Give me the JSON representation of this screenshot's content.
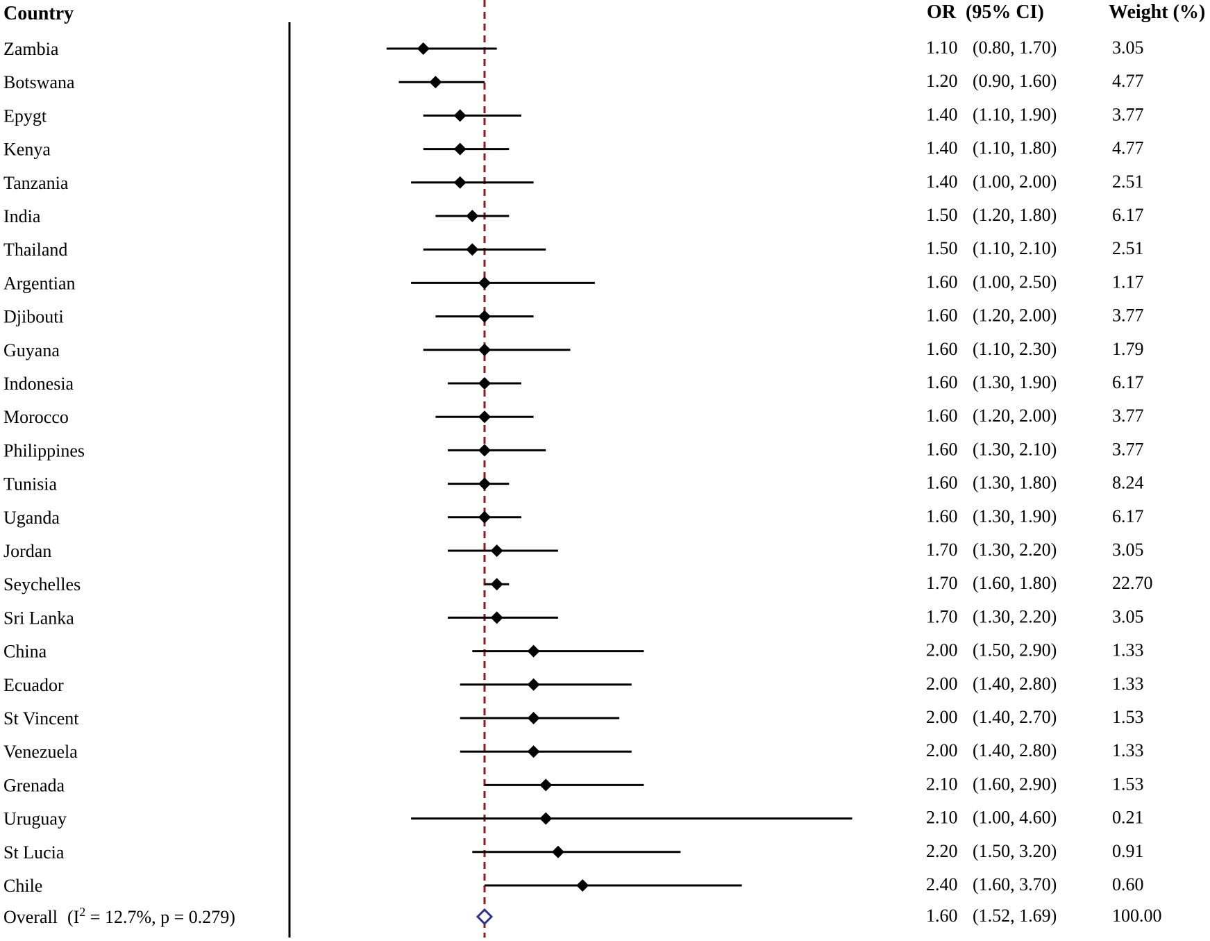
{
  "chart_data": {
    "type": "forest",
    "headers": {
      "country": "Country",
      "or_ci": "OR  (95% CI)",
      "weight": "Weight (%)"
    },
    "reference_value": 1.6,
    "rows": [
      {
        "country": "Zambia",
        "or": 1.1,
        "lo": 0.8,
        "hi": 1.7,
        "or_text": "1.10",
        "ci_text": "(0.80, 1.70)",
        "weight": "3.05"
      },
      {
        "country": "Botswana",
        "or": 1.2,
        "lo": 0.9,
        "hi": 1.6,
        "or_text": "1.20",
        "ci_text": "(0.90, 1.60)",
        "weight": "4.77"
      },
      {
        "country": "Epygt",
        "or": 1.4,
        "lo": 1.1,
        "hi": 1.9,
        "or_text": "1.40",
        "ci_text": "(1.10, 1.90)",
        "weight": "3.77"
      },
      {
        "country": "Kenya",
        "or": 1.4,
        "lo": 1.1,
        "hi": 1.8,
        "or_text": "1.40",
        "ci_text": "(1.10, 1.80)",
        "weight": "4.77"
      },
      {
        "country": "Tanzania",
        "or": 1.4,
        "lo": 1.0,
        "hi": 2.0,
        "or_text": "1.40",
        "ci_text": "(1.00, 2.00)",
        "weight": "2.51"
      },
      {
        "country": "India",
        "or": 1.5,
        "lo": 1.2,
        "hi": 1.8,
        "or_text": "1.50",
        "ci_text": "(1.20, 1.80)",
        "weight": "6.17"
      },
      {
        "country": "Thailand",
        "or": 1.5,
        "lo": 1.1,
        "hi": 2.1,
        "or_text": "1.50",
        "ci_text": "(1.10, 2.10)",
        "weight": "2.51"
      },
      {
        "country": "Argentian",
        "or": 1.6,
        "lo": 1.0,
        "hi": 2.5,
        "or_text": "1.60",
        "ci_text": "(1.00, 2.50)",
        "weight": "1.17"
      },
      {
        "country": "Djibouti",
        "or": 1.6,
        "lo": 1.2,
        "hi": 2.0,
        "or_text": "1.60",
        "ci_text": "(1.20, 2.00)",
        "weight": "3.77"
      },
      {
        "country": "Guyana",
        "or": 1.6,
        "lo": 1.1,
        "hi": 2.3,
        "or_text": "1.60",
        "ci_text": "(1.10, 2.30)",
        "weight": "1.79"
      },
      {
        "country": "Indonesia",
        "or": 1.6,
        "lo": 1.3,
        "hi": 1.9,
        "or_text": "1.60",
        "ci_text": "(1.30, 1.90)",
        "weight": "6.17"
      },
      {
        "country": "Morocco",
        "or": 1.6,
        "lo": 1.2,
        "hi": 2.0,
        "or_text": "1.60",
        "ci_text": "(1.20, 2.00)",
        "weight": "3.77"
      },
      {
        "country": "Philippines",
        "or": 1.6,
        "lo": 1.3,
        "hi": 2.1,
        "or_text": "1.60",
        "ci_text": "(1.30, 2.10)",
        "weight": "3.77"
      },
      {
        "country": "Tunisia",
        "or": 1.6,
        "lo": 1.3,
        "hi": 1.8,
        "or_text": "1.60",
        "ci_text": "(1.30, 1.80)",
        "weight": "8.24"
      },
      {
        "country": "Uganda",
        "or": 1.6,
        "lo": 1.3,
        "hi": 1.9,
        "or_text": "1.60",
        "ci_text": "(1.30, 1.90)",
        "weight": "6.17"
      },
      {
        "country": "Jordan",
        "or": 1.7,
        "lo": 1.3,
        "hi": 2.2,
        "or_text": "1.70",
        "ci_text": "(1.30, 2.20)",
        "weight": "3.05"
      },
      {
        "country": "Seychelles",
        "or": 1.7,
        "lo": 1.6,
        "hi": 1.8,
        "or_text": "1.70",
        "ci_text": "(1.60, 1.80)",
        "weight": "22.70"
      },
      {
        "country": "Sri Lanka",
        "or": 1.7,
        "lo": 1.3,
        "hi": 2.2,
        "or_text": "1.70",
        "ci_text": "(1.30, 2.20)",
        "weight": "3.05"
      },
      {
        "country": "China",
        "or": 2.0,
        "lo": 1.5,
        "hi": 2.9,
        "or_text": "2.00",
        "ci_text": "(1.50, 2.90)",
        "weight": "1.33"
      },
      {
        "country": "Ecuador",
        "or": 2.0,
        "lo": 1.4,
        "hi": 2.8,
        "or_text": "2.00",
        "ci_text": "(1.40, 2.80)",
        "weight": "1.33"
      },
      {
        "country": "St Vincent",
        "or": 2.0,
        "lo": 1.4,
        "hi": 2.7,
        "or_text": "2.00",
        "ci_text": "(1.40, 2.70)",
        "weight": "1.53"
      },
      {
        "country": "Venezuela",
        "or": 2.0,
        "lo": 1.4,
        "hi": 2.8,
        "or_text": "2.00",
        "ci_text": "(1.40, 2.80)",
        "weight": "1.33"
      },
      {
        "country": "Grenada",
        "or": 2.1,
        "lo": 1.6,
        "hi": 2.9,
        "or_text": "2.10",
        "ci_text": "(1.60, 2.90)",
        "weight": "1.53"
      },
      {
        "country": "Uruguay",
        "or": 2.1,
        "lo": 1.0,
        "hi": 4.6,
        "or_text": "2.10",
        "ci_text": "(1.00, 4.60)",
        "weight": "0.21"
      },
      {
        "country": "St Lucia",
        "or": 2.2,
        "lo": 1.5,
        "hi": 3.2,
        "or_text": "2.20",
        "ci_text": "(1.50, 3.20)",
        "weight": "0.91"
      },
      {
        "country": "Chile",
        "or": 2.4,
        "lo": 1.6,
        "hi": 3.7,
        "or_text": "2.40",
        "ci_text": "(1.60, 3.70)",
        "weight": "0.60"
      }
    ],
    "overall": {
      "label": "Overall",
      "heterogeneity_prefix": "(I",
      "heterogeneity_sup": "2",
      "heterogeneity_suffix": " = 12.7%, p = 0.279)",
      "or": 1.6,
      "lo": 1.52,
      "hi": 1.69,
      "or_text": "1.60",
      "ci_text": "(1.52, 1.69)",
      "weight": "100.00"
    },
    "colors": {
      "marker": "#000000",
      "reference_line": "#8b1a1a",
      "overall_marker": "#2e3192"
    }
  }
}
